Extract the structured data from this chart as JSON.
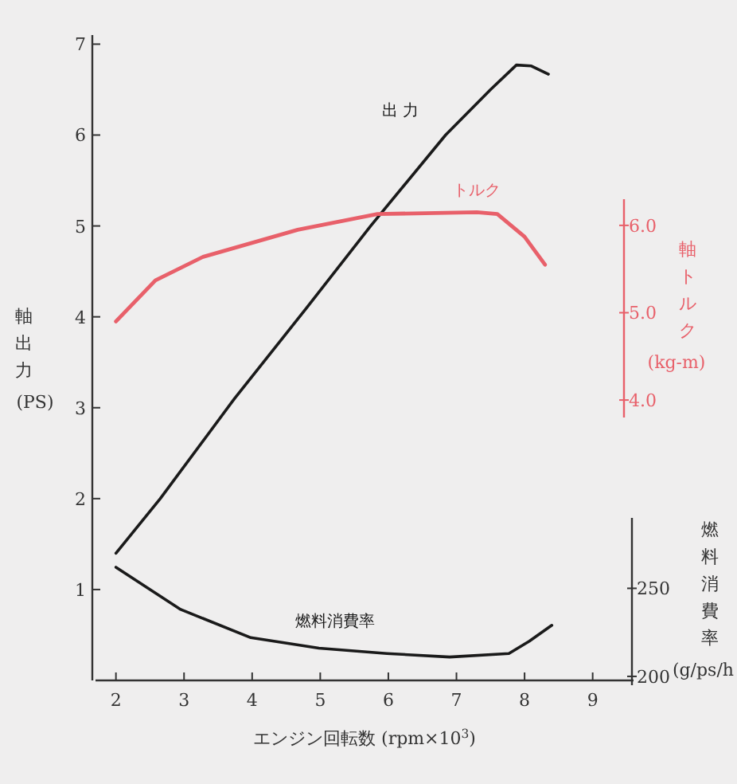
{
  "chart_data": {
    "type": "line",
    "xlabel": "エンジン回転数 (rpm×10$^{3}$)",
    "ylabel": "軸出力(PS)",
    "y2label": "軸トルク(kg-m)",
    "y3label": "燃料消費率(g/ps/h",
    "xlim": [
      1.7,
      9.6
    ],
    "xticks": [
      2,
      3,
      4,
      5,
      6,
      7,
      8,
      9
    ],
    "ylim": [
      0,
      7.1
    ],
    "yticks": [
      1,
      2,
      3,
      4,
      5,
      6,
      7
    ],
    "y2lim": [
      3.8,
      6.3
    ],
    "y2ticks": [
      {
        "value": 4,
        "label": "4.0"
      },
      {
        "value": 5,
        "label": "5.0"
      },
      {
        "value": 6,
        "label": "6.0"
      }
    ],
    "y3lim": [
      195,
      290
    ],
    "y3ticks": [
      200,
      250
    ],
    "marker": "none",
    "line_style": "solid",
    "series": [
      {
        "name": "出 力",
        "color": "#1a1a1a",
        "x": [
          2.0,
          2.65,
          3.74,
          4.8,
          5.74,
          6.84,
          7.5,
          7.88,
          8.1,
          8.35
        ],
        "values": [
          1.4,
          2.0,
          3.1,
          4.1,
          5.0,
          6.0,
          6.5,
          6.77,
          6.76,
          6.67
        ]
      },
      {
        "name": "トルク",
        "color": "#e8606a",
        "axis": "y2",
        "x": [
          2.0,
          2.58,
          3.28,
          4.67,
          5.84,
          7.3,
          7.6,
          8.0,
          8.3
        ],
        "values": [
          4.9,
          5.37,
          5.64,
          5.95,
          6.13,
          6.15,
          6.13,
          5.87,
          5.55
        ]
      },
      {
        "name": "燃料消費率",
        "color": "#1a1a1a",
        "axis": "y3",
        "x": [
          2.0,
          2.95,
          3.98,
          4.98,
          5.98,
          6.9,
          7.77,
          8.07,
          8.4
        ],
        "values": [
          262,
          238,
          222,
          216,
          213,
          211,
          213,
          220,
          229
        ]
      }
    ]
  }
}
